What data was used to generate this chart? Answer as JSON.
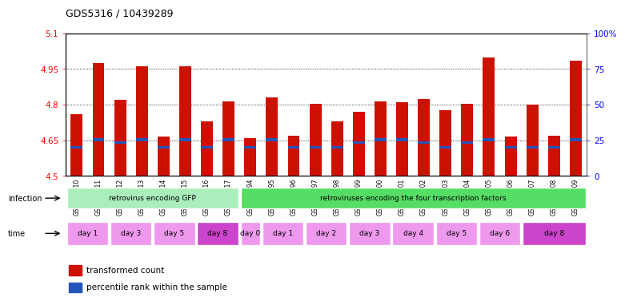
{
  "title": "GDS5316 / 10439289",
  "samples": [
    "GSM943810",
    "GSM943811",
    "GSM943812",
    "GSM943813",
    "GSM943814",
    "GSM943815",
    "GSM943816",
    "GSM943817",
    "GSM943794",
    "GSM943795",
    "GSM943796",
    "GSM943797",
    "GSM943798",
    "GSM943799",
    "GSM943800",
    "GSM943801",
    "GSM943802",
    "GSM943803",
    "GSM943804",
    "GSM943805",
    "GSM943806",
    "GSM943807",
    "GSM943808",
    "GSM943809"
  ],
  "transformed_count": [
    4.76,
    4.975,
    4.82,
    4.96,
    4.665,
    4.96,
    4.73,
    4.815,
    4.66,
    4.83,
    4.67,
    4.805,
    4.73,
    4.77,
    4.815,
    4.81,
    4.825,
    4.775,
    4.805,
    5.0,
    4.665,
    4.8,
    4.67,
    4.985
  ],
  "percentile_base": [
    4.615,
    4.645,
    4.635,
    4.645,
    4.615,
    4.645,
    4.615,
    4.645,
    4.615,
    4.645,
    4.615,
    4.615,
    4.615,
    4.635,
    4.645,
    4.645,
    4.635,
    4.615,
    4.635,
    4.645,
    4.615,
    4.615,
    4.615,
    4.645
  ],
  "percentile_top": [
    4.625,
    4.66,
    4.645,
    4.66,
    4.625,
    4.66,
    4.625,
    4.66,
    4.625,
    4.66,
    4.625,
    4.625,
    4.625,
    4.647,
    4.66,
    4.66,
    4.647,
    4.625,
    4.647,
    4.66,
    4.625,
    4.625,
    4.625,
    4.66
  ],
  "ymin": 4.5,
  "ymax": 5.1,
  "yticks": [
    4.5,
    4.65,
    4.8,
    4.95,
    5.1
  ],
  "ytick_labels": [
    "4.5",
    "4.65",
    "4.8",
    "4.95",
    "5.1"
  ],
  "right_yticks": [
    0,
    25,
    50,
    75,
    100
  ],
  "right_ytick_labels": [
    "0",
    "25",
    "50",
    "75",
    "100%"
  ],
  "bar_color": "#cc1100",
  "blue_color": "#2255bb",
  "infection_groups": [
    {
      "label": "retrovirus encoding GFP",
      "start": 0,
      "end": 8,
      "color": "#aaeebb"
    },
    {
      "label": "retroviruses encoding the four transcription factors",
      "start": 8,
      "end": 24,
      "color": "#55dd66"
    }
  ],
  "time_groups": [
    {
      "label": "day 1",
      "start": 0,
      "end": 2,
      "color": "#ee99ee"
    },
    {
      "label": "day 3",
      "start": 2,
      "end": 4,
      "color": "#ee99ee"
    },
    {
      "label": "day 5",
      "start": 4,
      "end": 6,
      "color": "#ee99ee"
    },
    {
      "label": "day 8",
      "start": 6,
      "end": 8,
      "color": "#cc44cc"
    },
    {
      "label": "day 0",
      "start": 8,
      "end": 9,
      "color": "#ee99ee"
    },
    {
      "label": "day 1",
      "start": 9,
      "end": 11,
      "color": "#ee99ee"
    },
    {
      "label": "day 2",
      "start": 11,
      "end": 13,
      "color": "#ee99ee"
    },
    {
      "label": "day 3",
      "start": 13,
      "end": 15,
      "color": "#ee99ee"
    },
    {
      "label": "day 4",
      "start": 15,
      "end": 17,
      "color": "#ee99ee"
    },
    {
      "label": "day 5",
      "start": 17,
      "end": 19,
      "color": "#ee99ee"
    },
    {
      "label": "day 6",
      "start": 19,
      "end": 21,
      "color": "#ee99ee"
    },
    {
      "label": "day 8",
      "start": 21,
      "end": 24,
      "color": "#cc44cc"
    }
  ],
  "legend_items": [
    {
      "label": "transformed count",
      "color": "#cc1100"
    },
    {
      "label": "percentile rank within the sample",
      "color": "#2255bb"
    }
  ],
  "bg_color": "#f0f0f0"
}
